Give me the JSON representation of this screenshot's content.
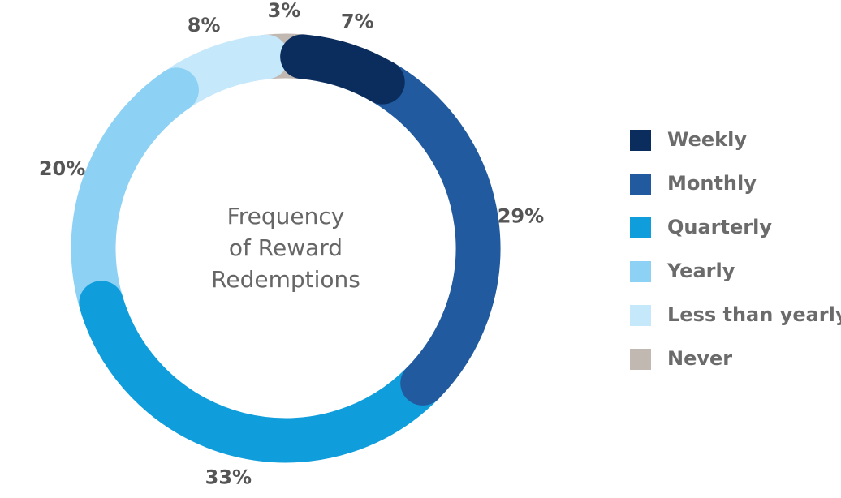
{
  "chart_data": {
    "type": "donut",
    "title": [
      "Frequency",
      "of Reward",
      "Redemptions"
    ],
    "categories": [
      "Weekly",
      "Monthly",
      "Quarterly",
      "Yearly",
      "Less than yearly",
      "Never"
    ],
    "values": [
      7,
      29,
      33,
      20,
      8,
      3
    ],
    "value_labels": [
      "7%",
      "29%",
      "33%",
      "20%",
      "8%",
      "3%"
    ],
    "colors": [
      "#0b2d5e",
      "#215a9e",
      "#0f9edb",
      "#8dd1f5",
      "#c6e8fb",
      "#c2b8b2"
    ],
    "legend": "right"
  }
}
